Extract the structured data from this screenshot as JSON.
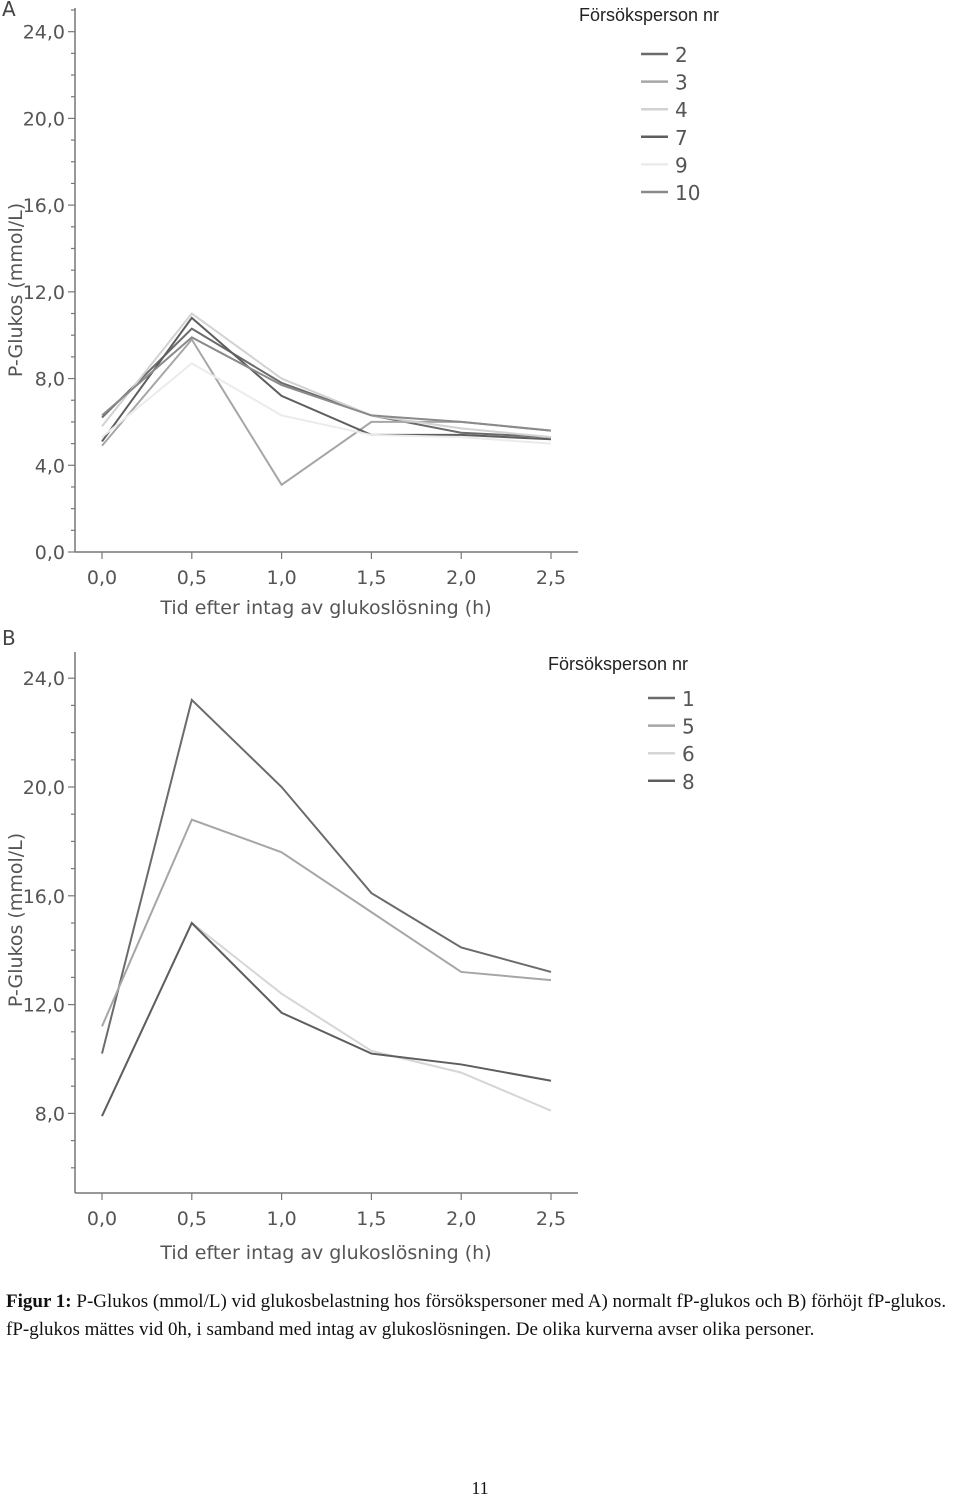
{
  "chart_data": [
    {
      "type": "line",
      "panel": "A",
      "xlabel": "Tid efter intag av glukoslösning (h)",
      "ylabel": "P-Glukos (mmol/L)",
      "x": [
        0.0,
        0.5,
        1.0,
        1.5,
        2.0,
        2.5
      ],
      "x_tick_labels": [
        "0,0",
        "0,5",
        "1,0",
        "1,5",
        "2,0",
        "2,5"
      ],
      "y_ticks": [
        0,
        4,
        8,
        12,
        16,
        20,
        24
      ],
      "y_tick_labels": [
        "0,0",
        "4,0",
        "8,0",
        "12,0",
        "16,0",
        "20,0",
        "24,0"
      ],
      "ylim": [
        0,
        25
      ],
      "legend_title": "Försöksperson nr",
      "legend_position": "top-right",
      "series": [
        {
          "name": "2",
          "color": "#6b6b6b",
          "values": [
            6.2,
            10.3,
            7.8,
            6.3,
            5.5,
            5.3
          ]
        },
        {
          "name": "3",
          "color": "#a6a6a6",
          "values": [
            4.9,
            9.8,
            3.1,
            6.0,
            6.0,
            5.6
          ]
        },
        {
          "name": "4",
          "color": "#d2d2d2",
          "values": [
            5.8,
            11.0,
            8.0,
            6.3,
            5.7,
            5.3
          ]
        },
        {
          "name": "7",
          "color": "#5e5e5e",
          "values": [
            5.1,
            10.8,
            7.2,
            5.4,
            5.4,
            5.2
          ]
        },
        {
          "name": "9",
          "color": "#ebebeb",
          "values": [
            5.3,
            8.7,
            6.3,
            5.4,
            5.3,
            5.0
          ]
        },
        {
          "name": "10",
          "color": "#8a8a8a",
          "values": [
            6.3,
            9.9,
            7.7,
            6.3,
            6.0,
            5.6
          ]
        }
      ]
    },
    {
      "type": "line",
      "panel": "B",
      "xlabel": "Tid efter intag av glukoslösning (h)",
      "ylabel": "P-Glukos (mmol/L)",
      "x": [
        0.0,
        0.5,
        1.0,
        1.5,
        2.0,
        2.5
      ],
      "x_tick_labels": [
        "0,0",
        "0,5",
        "1,0",
        "1,5",
        "2,0",
        "2,5"
      ],
      "y_ticks": [
        8,
        12,
        16,
        20,
        24
      ],
      "y_tick_labels": [
        "8,0",
        "12,0",
        "16,0",
        "20,0",
        "24,0"
      ],
      "ylim": [
        5,
        25
      ],
      "legend_title": "Försöksperson nr",
      "legend_position": "top-right",
      "series": [
        {
          "name": "1",
          "color": "#6b6b6b",
          "values": [
            10.2,
            23.2,
            20.0,
            16.1,
            14.1,
            13.2
          ]
        },
        {
          "name": "5",
          "color": "#a6a6a6",
          "values": [
            11.2,
            18.8,
            17.6,
            15.4,
            13.2,
            12.9
          ]
        },
        {
          "name": "6",
          "color": "#d6d6d6",
          "values": [
            7.9,
            15.0,
            12.4,
            10.3,
            9.5,
            8.1
          ]
        },
        {
          "name": "8",
          "color": "#5e5e5e",
          "values": [
            7.9,
            15.0,
            11.7,
            10.2,
            9.8,
            9.2
          ]
        }
      ]
    }
  ],
  "caption": {
    "lead": "Figur 1:",
    "text": " P-Glukos (mmol/L) vid glukosbelastning hos försökspersoner med A) normalt fP-glukos och B) förhöjt fP-glukos. fP-glukos mättes vid 0h, i samband med intag av glukoslösningen. De olika kurverna avser olika personer."
  },
  "page_number": "11"
}
